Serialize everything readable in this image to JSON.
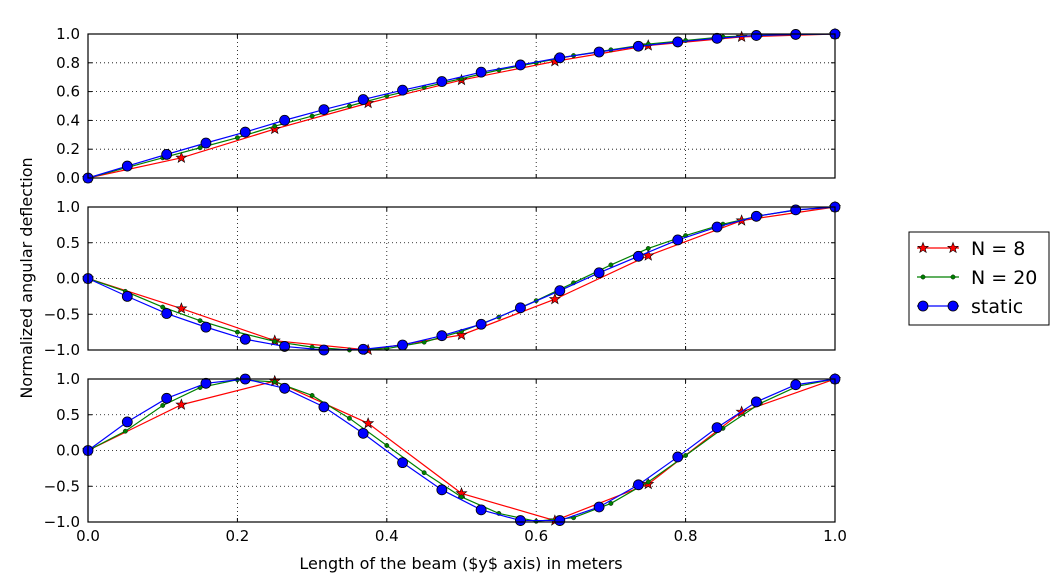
{
  "chart_data": {
    "type": "line",
    "xlabel": "Length of the beam ($y$ axis) in meters",
    "ylabel": "Normalized angular deflection",
    "xlim": [
      0.0,
      1.0
    ],
    "x_ticks": [
      "0.0",
      "0.2",
      "0.4",
      "0.6",
      "0.8",
      "1.0"
    ],
    "grid": true,
    "legend": {
      "position": "right",
      "entries": [
        {
          "label": "N = 8",
          "color": "#ff0000",
          "marker": "star"
        },
        {
          "label": "N = 20",
          "color": "#008000",
          "marker": "dot"
        },
        {
          "label": "static",
          "color": "#0000ff",
          "marker": "circle"
        }
      ]
    },
    "subplots": [
      {
        "ylim": [
          0.0,
          1.0
        ],
        "y_ticks": [
          "0.0",
          "0.2",
          "0.4",
          "0.6",
          "0.8",
          "1.0"
        ],
        "series": [
          {
            "name": "N = 8",
            "x": [
              0,
              0.125,
              0.25,
              0.375,
              0.5,
              0.625,
              0.75,
              0.875,
              1.0
            ],
            "y": [
              0,
              0.14,
              0.34,
              0.52,
              0.68,
              0.81,
              0.92,
              0.98,
              1.0
            ]
          },
          {
            "name": "N = 20",
            "x": [
              0,
              0.05,
              0.1,
              0.15,
              0.2,
              0.25,
              0.3,
              0.35,
              0.4,
              0.45,
              0.5,
              0.55,
              0.6,
              0.65,
              0.7,
              0.75,
              0.8,
              0.85,
              0.9,
              0.95,
              1.0
            ],
            "y": [
              0,
              0.07,
              0.14,
              0.21,
              0.28,
              0.36,
              0.43,
              0.5,
              0.57,
              0.63,
              0.69,
              0.75,
              0.8,
              0.85,
              0.89,
              0.93,
              0.955,
              0.98,
              0.99,
              0.997,
              1.0
            ]
          },
          {
            "name": "static",
            "x": [
              0,
              0.0526,
              0.1053,
              0.1579,
              0.2105,
              0.2632,
              0.3158,
              0.3684,
              0.4211,
              0.4737,
              0.5263,
              0.5789,
              0.6316,
              0.6842,
              0.7368,
              0.7895,
              0.8421,
              0.8947,
              0.9474,
              1.0
            ],
            "y": [
              0,
              0.083,
              0.164,
              0.243,
              0.319,
              0.401,
              0.475,
              0.545,
              0.61,
              0.67,
              0.735,
              0.785,
              0.835,
              0.875,
              0.915,
              0.945,
              0.97,
              0.99,
              0.997,
              1.0
            ]
          }
        ]
      },
      {
        "ylim": [
          -1.0,
          1.0
        ],
        "y_ticks": [
          "−1.0",
          "−0.5",
          "0.0",
          "0.5",
          "1.0"
        ],
        "series": [
          {
            "name": "N = 8",
            "x": [
              0,
              0.125,
              0.25,
              0.375,
              0.5,
              0.625,
              0.75,
              0.875,
              1.0
            ],
            "y": [
              0,
              -0.42,
              -0.87,
              -1.0,
              -0.79,
              -0.29,
              0.32,
              0.81,
              1.0
            ]
          },
          {
            "name": "N = 20",
            "x": [
              0,
              0.05,
              0.1,
              0.15,
              0.2,
              0.25,
              0.3,
              0.35,
              0.4,
              0.45,
              0.5,
              0.55,
              0.6,
              0.65,
              0.7,
              0.75,
              0.8,
              0.85,
              0.9,
              0.95,
              1.0
            ],
            "y": [
              0,
              -0.18,
              -0.4,
              -0.59,
              -0.75,
              -0.88,
              -0.96,
              -1.0,
              -0.98,
              -0.89,
              -0.74,
              -0.54,
              -0.31,
              -0.06,
              0.19,
              0.42,
              0.6,
              0.76,
              0.88,
              0.96,
              1.0
            ]
          },
          {
            "name": "static",
            "x": [
              0,
              0.0526,
              0.1053,
              0.1579,
              0.2105,
              0.2632,
              0.3158,
              0.3684,
              0.4211,
              0.4737,
              0.5263,
              0.5789,
              0.6316,
              0.6842,
              0.7368,
              0.7895,
              0.8421,
              0.8947,
              0.9474,
              1.0
            ],
            "y": [
              0,
              -0.25,
              -0.49,
              -0.68,
              -0.85,
              -0.95,
              -1.0,
              -0.99,
              -0.93,
              -0.8,
              -0.64,
              -0.41,
              -0.17,
              0.08,
              0.31,
              0.54,
              0.72,
              0.87,
              0.96,
              1.0
            ]
          }
        ]
      },
      {
        "ylim": [
          -1.0,
          1.0
        ],
        "y_ticks": [
          "−1.0",
          "−0.5",
          "0.0",
          "0.5",
          "1.0"
        ],
        "series": [
          {
            "name": "N = 8",
            "x": [
              0,
              0.125,
              0.25,
              0.375,
              0.5,
              0.625,
              0.75,
              0.875,
              1.0
            ],
            "y": [
              0,
              0.64,
              0.97,
              0.38,
              -0.6,
              -0.98,
              -0.47,
              0.54,
              1.0
            ]
          },
          {
            "name": "N = 20",
            "x": [
              0,
              0.05,
              0.1,
              0.15,
              0.2,
              0.25,
              0.3,
              0.35,
              0.4,
              0.45,
              0.5,
              0.55,
              0.6,
              0.65,
              0.7,
              0.75,
              0.8,
              0.85,
              0.9,
              0.95,
              1.0
            ],
            "y": [
              0,
              0.27,
              0.63,
              0.88,
              0.99,
              0.96,
              0.77,
              0.45,
              0.07,
              -0.31,
              -0.65,
              -0.88,
              -0.99,
              -0.94,
              -0.74,
              -0.44,
              -0.07,
              0.31,
              0.66,
              0.9,
              1.0
            ]
          },
          {
            "name": "static",
            "x": [
              0,
              0.0526,
              0.1053,
              0.1579,
              0.2105,
              0.2632,
              0.3158,
              0.3684,
              0.4211,
              0.4737,
              0.5263,
              0.5789,
              0.6316,
              0.6842,
              0.7368,
              0.7895,
              0.8421,
              0.8947,
              0.9474,
              1.0
            ],
            "y": [
              0,
              0.4,
              0.73,
              0.94,
              1.0,
              0.87,
              0.61,
              0.24,
              -0.17,
              -0.55,
              -0.83,
              -0.98,
              -0.98,
              -0.79,
              -0.48,
              -0.09,
              0.32,
              0.68,
              0.92,
              1.0
            ]
          }
        ]
      }
    ]
  }
}
